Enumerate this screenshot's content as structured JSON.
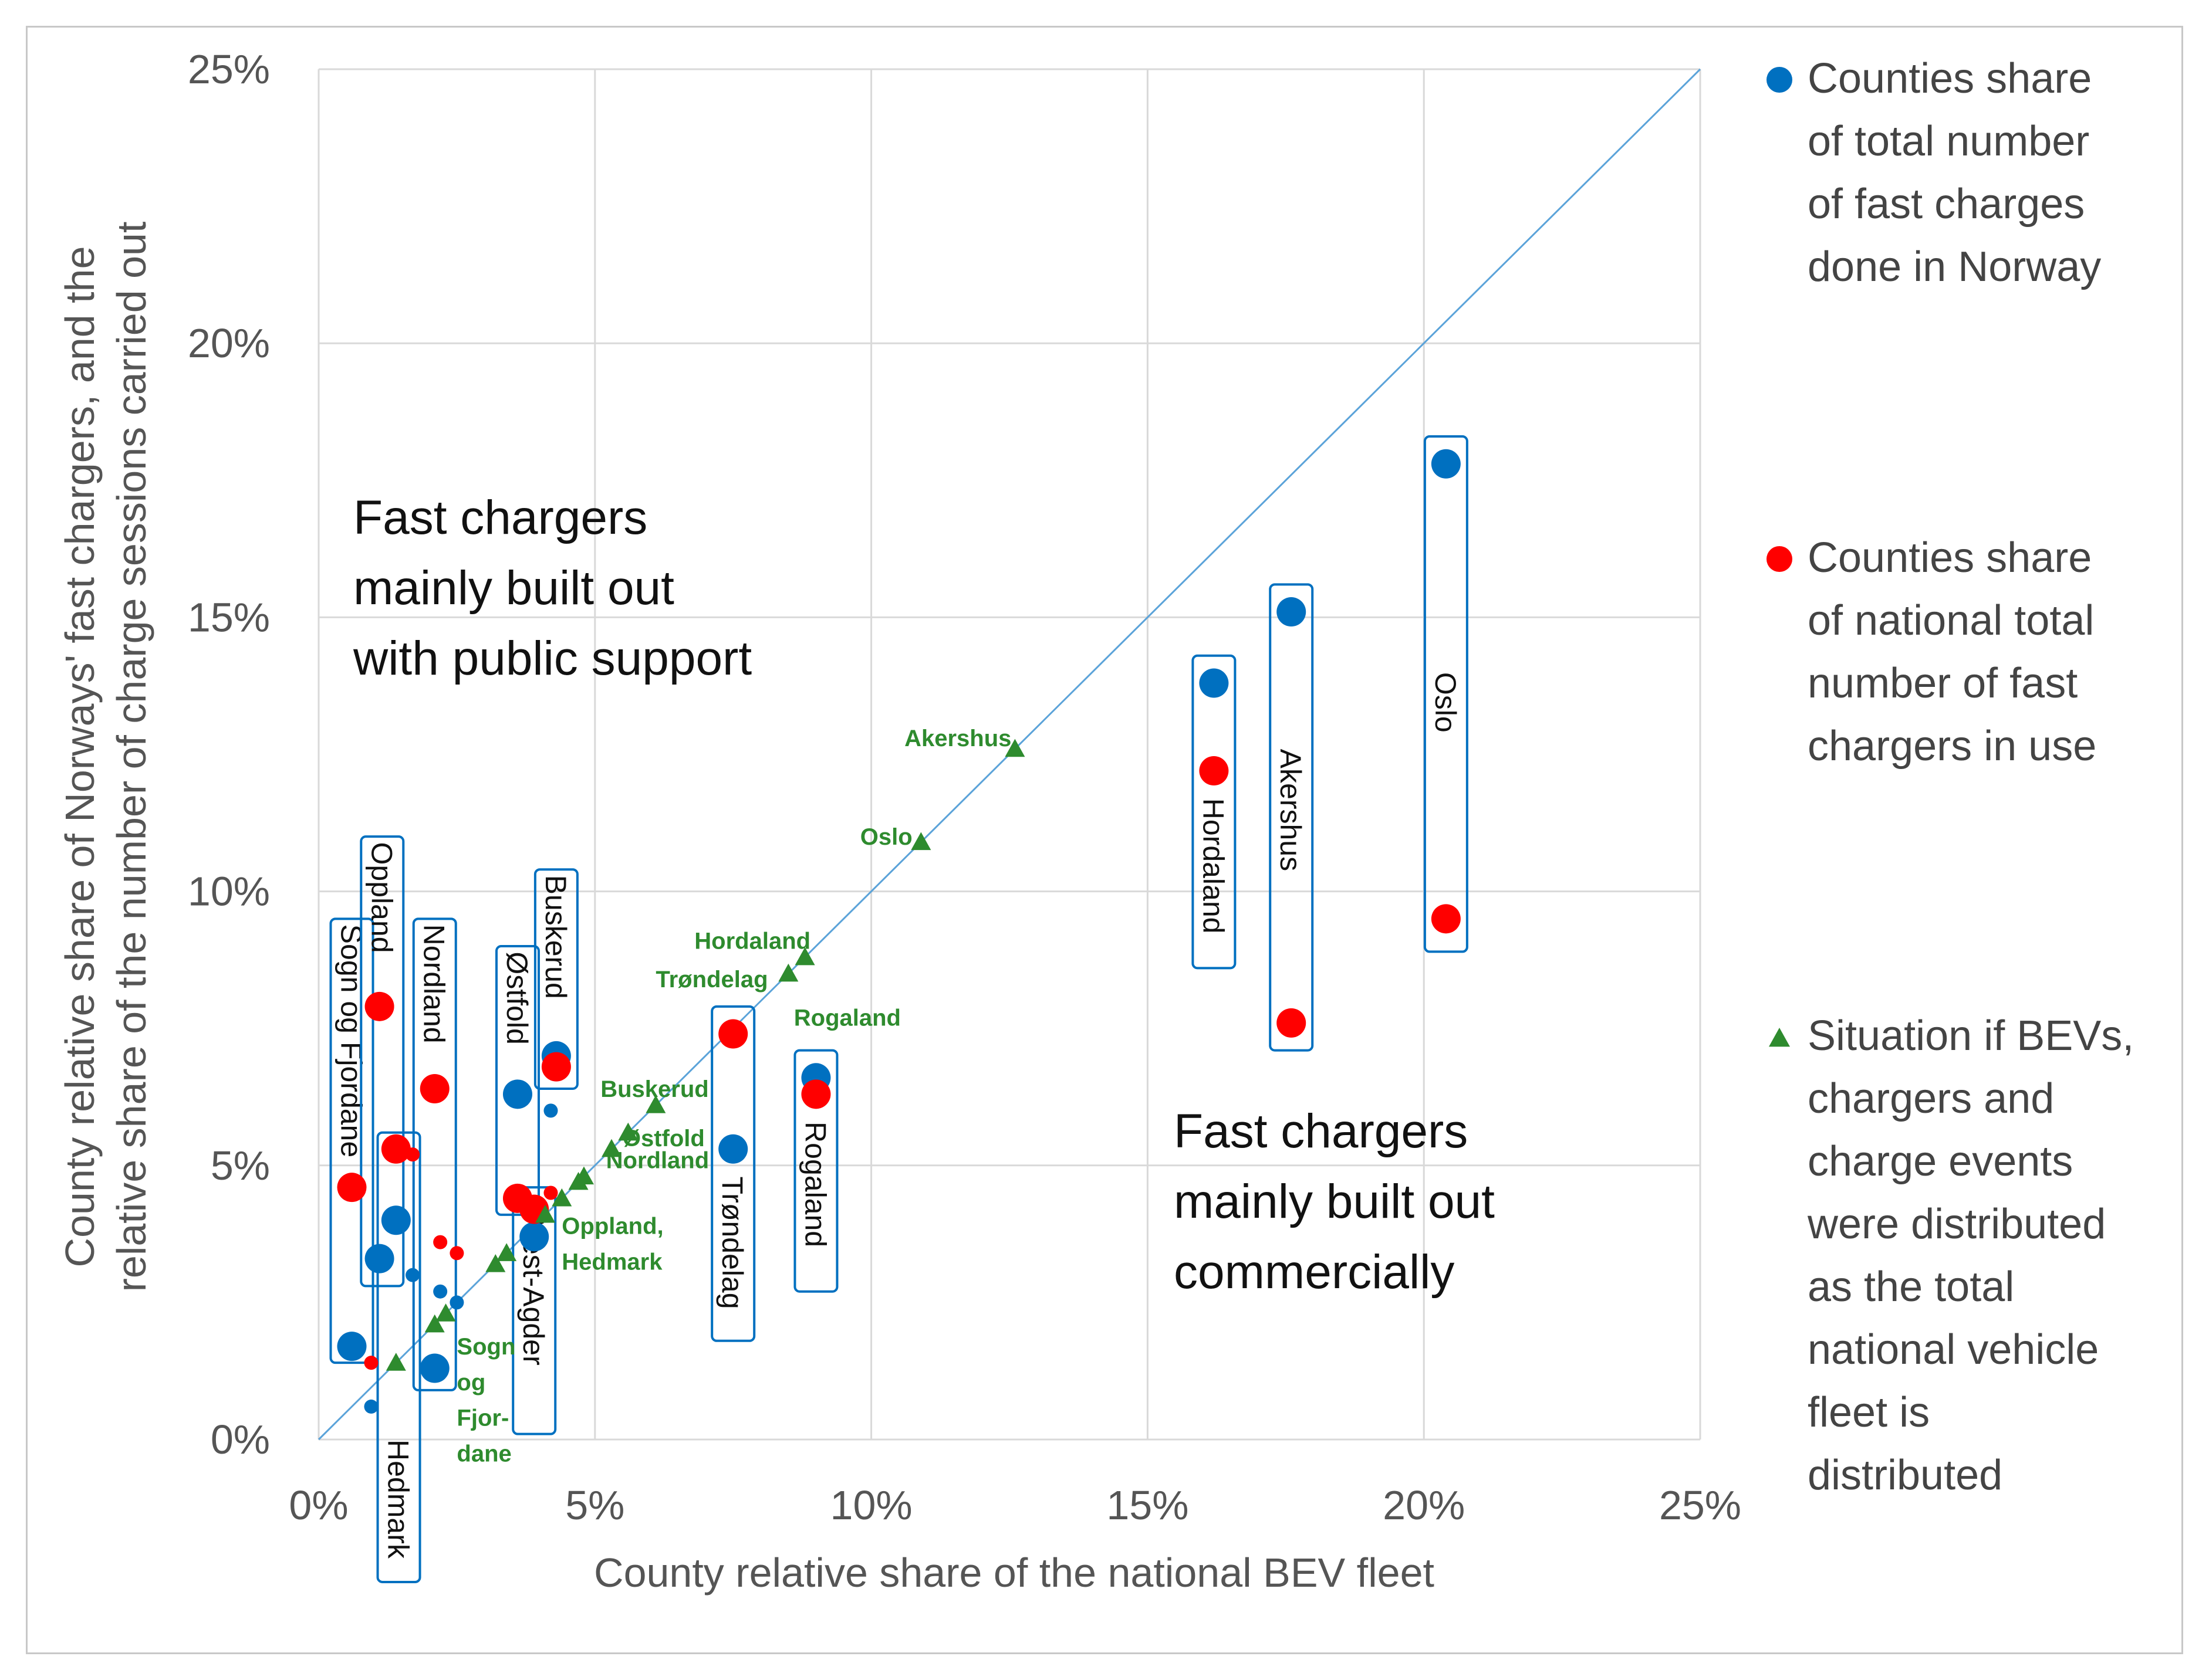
{
  "chart_data": {
    "type": "scatter",
    "xlabel": "County relative share of the national BEV fleet",
    "ylabel_lines": [
      "County relative share of Norways' fast chargers, and the",
      "relative share of the number of charge sessions carried out"
    ],
    "xlim": [
      0,
      25
    ],
    "ylim": [
      0,
      25
    ],
    "xticks": [
      0,
      5,
      10,
      15,
      20,
      25
    ],
    "yticks": [
      0,
      5,
      10,
      15,
      20,
      25
    ],
    "xtick_labels": [
      "0%",
      "5%",
      "10%",
      "15%",
      "20%",
      "25%"
    ],
    "ytick_labels": [
      "0%",
      "5%",
      "10%",
      "15%",
      "20%",
      "25%"
    ],
    "grid": true,
    "reference_line": [
      [
        0,
        0
      ],
      [
        25,
        25
      ]
    ],
    "colors": {
      "blue": "#0070c0",
      "red": "#ff0000",
      "green": "#2e8b2e",
      "line": "#5ba3d9"
    },
    "regions": {
      "upper": [
        "Fast chargers",
        "mainly built out",
        "with public support"
      ],
      "lower": [
        "Fast chargers",
        "mainly built out",
        "commercially"
      ]
    },
    "legend": [
      {
        "marker": "blue-circle",
        "lines": [
          "Counties share",
          "of total number",
          "of fast charges",
          "done in Norway"
        ]
      },
      {
        "marker": "red-circle",
        "lines": [
          "Counties share",
          "of national total",
          "number of fast",
          "chargers in use"
        ]
      },
      {
        "marker": "green-triangle",
        "lines": [
          "Situation if BEVs,",
          "chargers and",
          "charge events",
          "were distributed",
          "as the total",
          "national vehicle",
          "fleet is",
          "distributed"
        ]
      }
    ],
    "series": [
      {
        "name": "Counties share of total number of fast charges done in Norway",
        "color": "blue",
        "points": [
          {
            "x": 0.6,
            "y": 1.7,
            "big": true
          },
          {
            "x": 1.1,
            "y": 3.3,
            "big": true
          },
          {
            "x": 1.4,
            "y": 4.0,
            "big": true
          },
          {
            "x": 2.1,
            "y": 1.3,
            "big": true
          },
          {
            "x": 3.6,
            "y": 6.3,
            "big": true
          },
          {
            "x": 4.3,
            "y": 7.0,
            "big": true
          },
          {
            "x": 3.9,
            "y": 3.7,
            "big": true
          },
          {
            "x": 7.5,
            "y": 5.3,
            "big": true
          },
          {
            "x": 9.0,
            "y": 6.6,
            "big": true
          },
          {
            "x": 16.2,
            "y": 13.8,
            "big": true
          },
          {
            "x": 17.6,
            "y": 15.1,
            "big": true
          },
          {
            "x": 20.4,
            "y": 17.8,
            "big": true
          },
          {
            "x": 0.95,
            "y": 0.6,
            "big": false
          },
          {
            "x": 1.7,
            "y": 3.0,
            "big": false
          },
          {
            "x": 2.2,
            "y": 2.7,
            "big": false
          },
          {
            "x": 2.5,
            "y": 2.5,
            "big": false
          },
          {
            "x": 4.2,
            "y": 6.0,
            "big": false
          }
        ]
      },
      {
        "name": "Counties share of national total number of fast chargers in use",
        "color": "red",
        "points": [
          {
            "x": 0.6,
            "y": 4.6,
            "big": true
          },
          {
            "x": 1.1,
            "y": 7.9,
            "big": true
          },
          {
            "x": 1.4,
            "y": 5.3,
            "big": true
          },
          {
            "x": 2.1,
            "y": 6.4,
            "big": true
          },
          {
            "x": 3.6,
            "y": 4.4,
            "big": true
          },
          {
            "x": 3.9,
            "y": 4.2,
            "big": true
          },
          {
            "x": 4.3,
            "y": 6.8,
            "big": true
          },
          {
            "x": 7.5,
            "y": 7.4,
            "big": true
          },
          {
            "x": 9.0,
            "y": 6.3,
            "big": true
          },
          {
            "x": 16.2,
            "y": 12.2,
            "big": true
          },
          {
            "x": 17.6,
            "y": 7.6,
            "big": true
          },
          {
            "x": 20.4,
            "y": 9.5,
            "big": true
          },
          {
            "x": 0.95,
            "y": 1.4,
            "big": false
          },
          {
            "x": 1.7,
            "y": 5.2,
            "big": false
          },
          {
            "x": 2.2,
            "y": 3.6,
            "big": false
          },
          {
            "x": 2.5,
            "y": 3.4,
            "big": false
          },
          {
            "x": 4.2,
            "y": 4.5,
            "big": false
          }
        ]
      },
      {
        "name": "Situation if BEVs, chargers and charge events were distributed as the total national vehicle fleet is distributed",
        "color": "green",
        "points": [
          {
            "x": 1.4,
            "y": 1.4
          },
          {
            "x": 2.1,
            "y": 2.1
          },
          {
            "x": 2.3,
            "y": 2.3
          },
          {
            "x": 3.2,
            "y": 3.2
          },
          {
            "x": 3.4,
            "y": 3.4
          },
          {
            "x": 4.1,
            "y": 4.1
          },
          {
            "x": 4.4,
            "y": 4.4
          },
          {
            "x": 4.7,
            "y": 4.7
          },
          {
            "x": 4.8,
            "y": 4.8
          },
          {
            "x": 5.3,
            "y": 5.3
          },
          {
            "x": 5.6,
            "y": 5.6
          },
          {
            "x": 6.1,
            "y": 6.1
          },
          {
            "x": 8.5,
            "y": 8.5
          },
          {
            "x": 8.8,
            "y": 8.8
          },
          {
            "x": 10.9,
            "y": 10.9
          },
          {
            "x": 12.6,
            "y": 12.6
          }
        ]
      }
    ],
    "county_boxes": [
      {
        "label": "Sogn og Fjordane",
        "x": 0.6,
        "y0": 1.4,
        "y1": 9.5,
        "label_y": 9.4
      },
      {
        "label": "Oppland",
        "x": 1.15,
        "y0": 2.8,
        "y1": 11.0,
        "label_y": 10.9
      },
      {
        "label": "Hedmark",
        "x": 1.45,
        "y0": -2.6,
        "y1": 5.6,
        "label_y": 0.0
      },
      {
        "label": "Nordland",
        "x": 2.1,
        "y0": 0.9,
        "y1": 9.5,
        "label_y": 9.4
      },
      {
        "label": "Østfold",
        "x": 3.6,
        "y0": 4.1,
        "y1": 9.0,
        "label_y": 8.9
      },
      {
        "label": "Buskerud",
        "x": 4.3,
        "y0": 6.4,
        "y1": 10.4,
        "label_y": 10.3
      },
      {
        "label": "Vest-Agder",
        "x": 3.9,
        "y0": 0.1,
        "y1": 4.6,
        "label_y": 4.0
      },
      {
        "label": "Trøndelag",
        "x": 7.5,
        "y0": 1.8,
        "y1": 7.9,
        "label_y": 4.8
      },
      {
        "label": "Rogaland",
        "x": 9.0,
        "y0": 2.7,
        "y1": 7.1,
        "label_y": 5.8
      },
      {
        "label": "Hordaland",
        "x": 16.2,
        "y0": 8.6,
        "y1": 14.3,
        "label_y": 11.7
      },
      {
        "label": "Akershus",
        "x": 17.6,
        "y0": 7.1,
        "y1": 15.6,
        "label_y": 12.6
      },
      {
        "label": "Oslo",
        "x": 20.4,
        "y0": 8.9,
        "y1": 18.3,
        "label_y": 14.0
      }
    ],
    "green_labels": [
      {
        "text": "Akershus",
        "x": 10.6,
        "y": 12.8
      },
      {
        "text": "Oslo",
        "x": 9.8,
        "y": 11.0
      },
      {
        "text": "Hordaland",
        "x": 6.8,
        "y": 9.1
      },
      {
        "text": "Trøndelag",
        "x": 6.1,
        "y": 8.4
      },
      {
        "text": "Rogaland",
        "x": 8.6,
        "y": 7.7
      },
      {
        "text": "Buskerud",
        "x": 5.1,
        "y": 6.4
      },
      {
        "text": "Østfold",
        "x": 5.5,
        "y": 5.5
      },
      {
        "text": "Nordland",
        "x": 5.2,
        "y": 5.1
      },
      {
        "text": "Oppland,",
        "x": 4.4,
        "y": 3.9
      },
      {
        "text": "Hedmark",
        "x": 4.4,
        "y": 3.25
      },
      {
        "text": "Sogn",
        "x": 2.5,
        "y": 1.7
      },
      {
        "text": "og",
        "x": 2.5,
        "y": 1.05
      },
      {
        "text": "Fjor-",
        "x": 2.5,
        "y": 0.4
      },
      {
        "text": "dane",
        "x": 2.5,
        "y": -0.25
      }
    ]
  }
}
